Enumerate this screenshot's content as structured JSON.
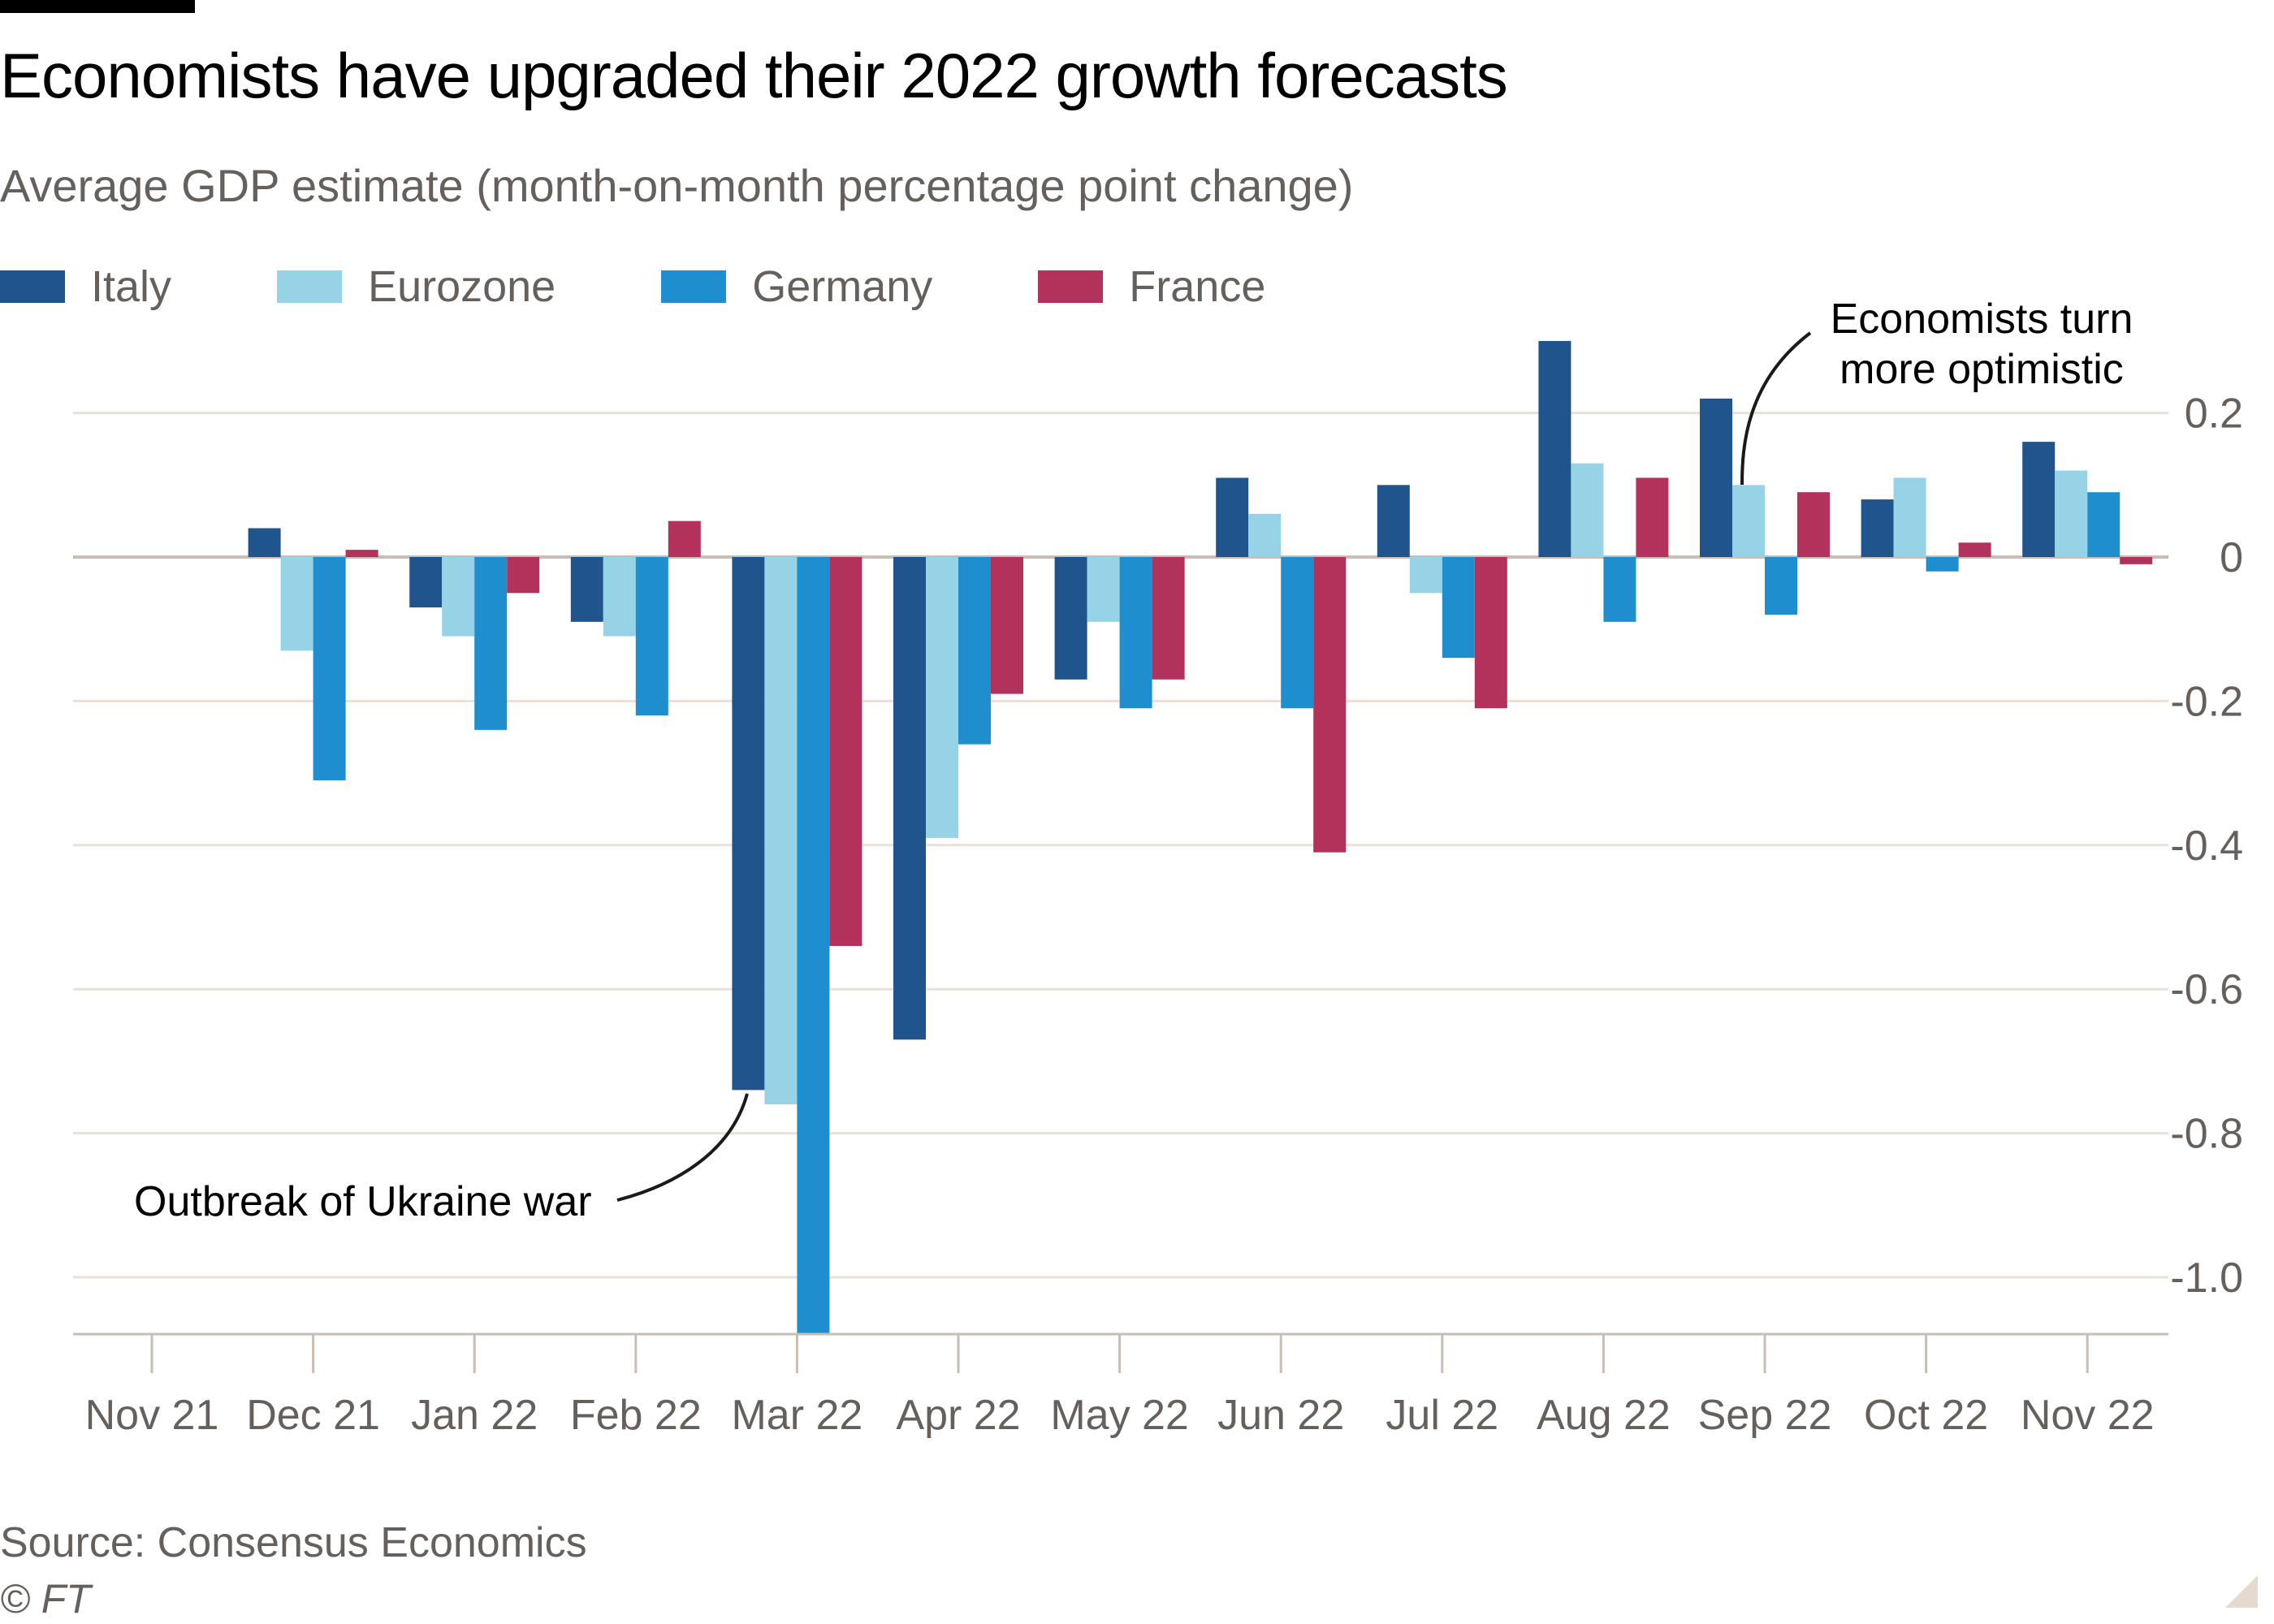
{
  "header": {
    "title": "Economists have upgraded their 2022 growth forecasts",
    "subtitle": "Average GDP estimate (month-on-month percentage point change)"
  },
  "legend": [
    {
      "name": "Italy",
      "color": "#1f558c"
    },
    {
      "name": "Eurozone",
      "color": "#96d3e6"
    },
    {
      "name": "Germany",
      "color": "#1f8ecf"
    },
    {
      "name": "France",
      "color": "#b2325c"
    }
  ],
  "footer": {
    "source": "Source: Consensus Economics",
    "copyright": "© FT"
  },
  "chart_data": {
    "type": "bar",
    "title": "Economists have upgraded their 2022 growth forecasts",
    "subtitle": "Average GDP estimate (month-on-month percentage point change)",
    "xlabel": "",
    "ylabel": "",
    "categories": [
      "Nov 21",
      "Dec 21",
      "Jan 22",
      "Feb 22",
      "Mar 22",
      "Apr 22",
      "May 22",
      "Jun 22",
      "Jul 22",
      "Aug 22",
      "Sep 22",
      "Oct 22",
      "Nov 22"
    ],
    "series": [
      {
        "name": "Italy",
        "color": "#1f558c",
        "values": [
          null,
          0.04,
          -0.07,
          -0.09,
          -0.74,
          -0.67,
          -0.17,
          0.11,
          0.1,
          0.3,
          0.22,
          0.08,
          0.16
        ]
      },
      {
        "name": "Eurozone",
        "color": "#96d3e6",
        "values": [
          null,
          -0.13,
          -0.11,
          -0.11,
          -0.76,
          -0.39,
          -0.09,
          0.06,
          -0.05,
          0.13,
          0.1,
          0.11,
          0.12
        ]
      },
      {
        "name": "Germany",
        "color": "#1f8ecf",
        "values": [
          null,
          -0.31,
          -0.24,
          -0.22,
          -1.08,
          -0.26,
          -0.21,
          -0.21,
          -0.14,
          -0.09,
          -0.08,
          -0.02,
          0.09
        ]
      },
      {
        "name": "France",
        "color": "#b2325c",
        "values": [
          null,
          0.01,
          -0.05,
          0.05,
          -0.54,
          -0.19,
          -0.17,
          -0.41,
          -0.21,
          0.11,
          0.09,
          0.02,
          -0.01
        ]
      }
    ],
    "yticks": [
      0.2,
      0,
      -0.2,
      -0.4,
      -0.6,
      -0.8,
      -1.0
    ],
    "ytick_labels": [
      "0.2",
      "0",
      "-0.2",
      "-0.4",
      "-0.6",
      "-0.8",
      "-1.0"
    ],
    "ylim": [
      -1.08,
      0.3
    ],
    "y_axis_side": "right",
    "grid": true,
    "legend_position": "top-left",
    "annotations": [
      {
        "text": "Outbreak of Ukraine war",
        "target": "Mar 22 Italy"
      },
      {
        "text_lines": [
          "Economists turn",
          "more optimistic"
        ],
        "target": "Sep 22 Eurozone"
      }
    ]
  }
}
